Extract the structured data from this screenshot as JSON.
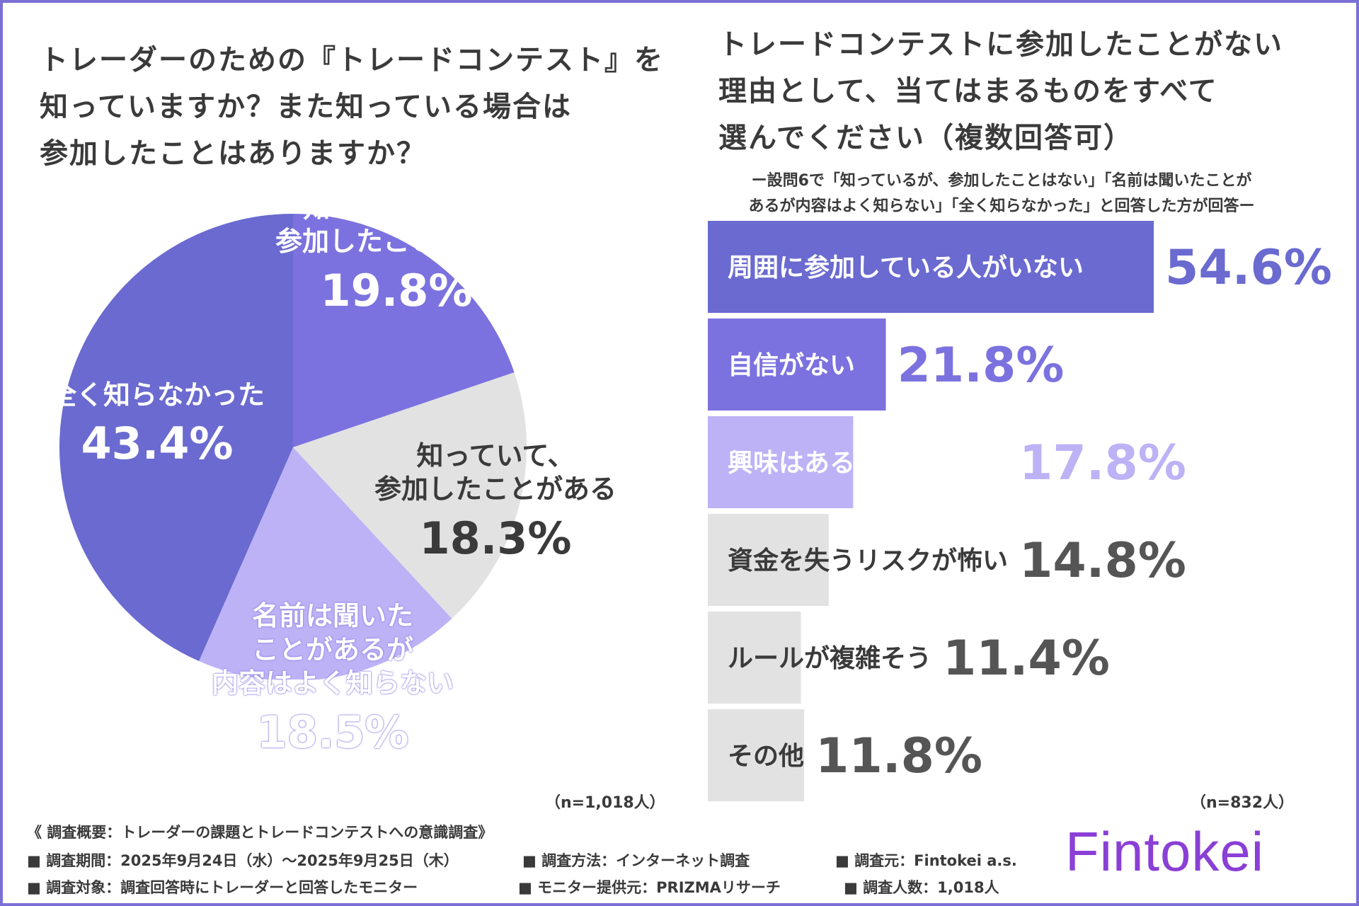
{
  "left": {
    "title": "トレーダーのための『トレードコンテスト』を\n知っていますか？また知っている場合は\n参加したことはありますか？",
    "n": "（n=1,018人）"
  },
  "right": {
    "title": "トレードコンテストに参加したことがない\n理由として、当てはまるものをすべて\n選んでください（複数回答可）",
    "subtitle": "ー設問6で「知っているが、参加したことはない」「名前は聞いたことが\nあるが内容はよく知らない」「全く知らなかった」と回答した方が回答ー",
    "n": "（n=832人）"
  },
  "chart_data": [
    {
      "type": "pie",
      "slices": [
        {
          "label": "知っているが、\n参加したことはない",
          "value": 19.8,
          "pct_text": "19.8%",
          "color": "#7b72df",
          "text_color": "#ffffff"
        },
        {
          "label": "知っていて、\n参加したことがある",
          "value": 18.3,
          "pct_text": "18.3%",
          "color": "#e2e2e2",
          "text_color": "#3a3a3a"
        },
        {
          "label": "名前は聞いた\nことがあるが\n内容はよく知らない",
          "value": 18.5,
          "pct_text": "18.5%",
          "color": "#bdb2f6",
          "text_color": "#ffffff"
        },
        {
          "label": "全く知らなかった",
          "value": 43.4,
          "pct_text": "43.4%",
          "color": "#6a6ad0",
          "text_color": "#ffffff"
        }
      ]
    },
    {
      "type": "bar",
      "orientation": "horizontal",
      "categories": [
        "周囲に参加している人がいない",
        "自信がない",
        "興味はあるが機会がない",
        "資金を失うリスクが怖い",
        "ルールが複雑そう",
        "その他"
      ],
      "values": [
        54.6,
        21.8,
        17.8,
        14.8,
        11.4,
        11.8
      ],
      "value_labels": [
        "54.6%",
        "21.8%",
        "17.8%",
        "14.8%",
        "11.4%",
        "11.8%"
      ],
      "bar_colors": [
        "#6a6ad0",
        "#7b72df",
        "#bdb2f6",
        "#e2e2e2",
        "#e2e2e2",
        "#e2e2e2"
      ],
      "label_colors": [
        "#ffffff",
        "#ffffff",
        "#ffffff",
        "#3a3a3a",
        "#3a3a3a",
        "#3a3a3a"
      ],
      "value_colors": [
        "#6a6ad0",
        "#7b72df",
        "#bdb2f6",
        "#555555",
        "#555555",
        "#555555"
      ]
    }
  ],
  "footer": {
    "heading": "《 調査概要：トレーダーの課題とトレードコンテストへの意識調査》",
    "period": "■ 調査期間：2025年9月24日（水）〜2025年9月25日（木）",
    "method": "■ 調査方法：インターネット調査",
    "source": "■ 調査元：Fintokei a.s.",
    "target": "■ 調査対象：調査回答時にトレーダーと回答したモニター",
    "provider": "■ モニター提供元：PRIZMAリサーチ",
    "count": "■ 調査人数：1,018人"
  },
  "brand": {
    "name": "Fintokei",
    "color": "#8a3fd6"
  }
}
